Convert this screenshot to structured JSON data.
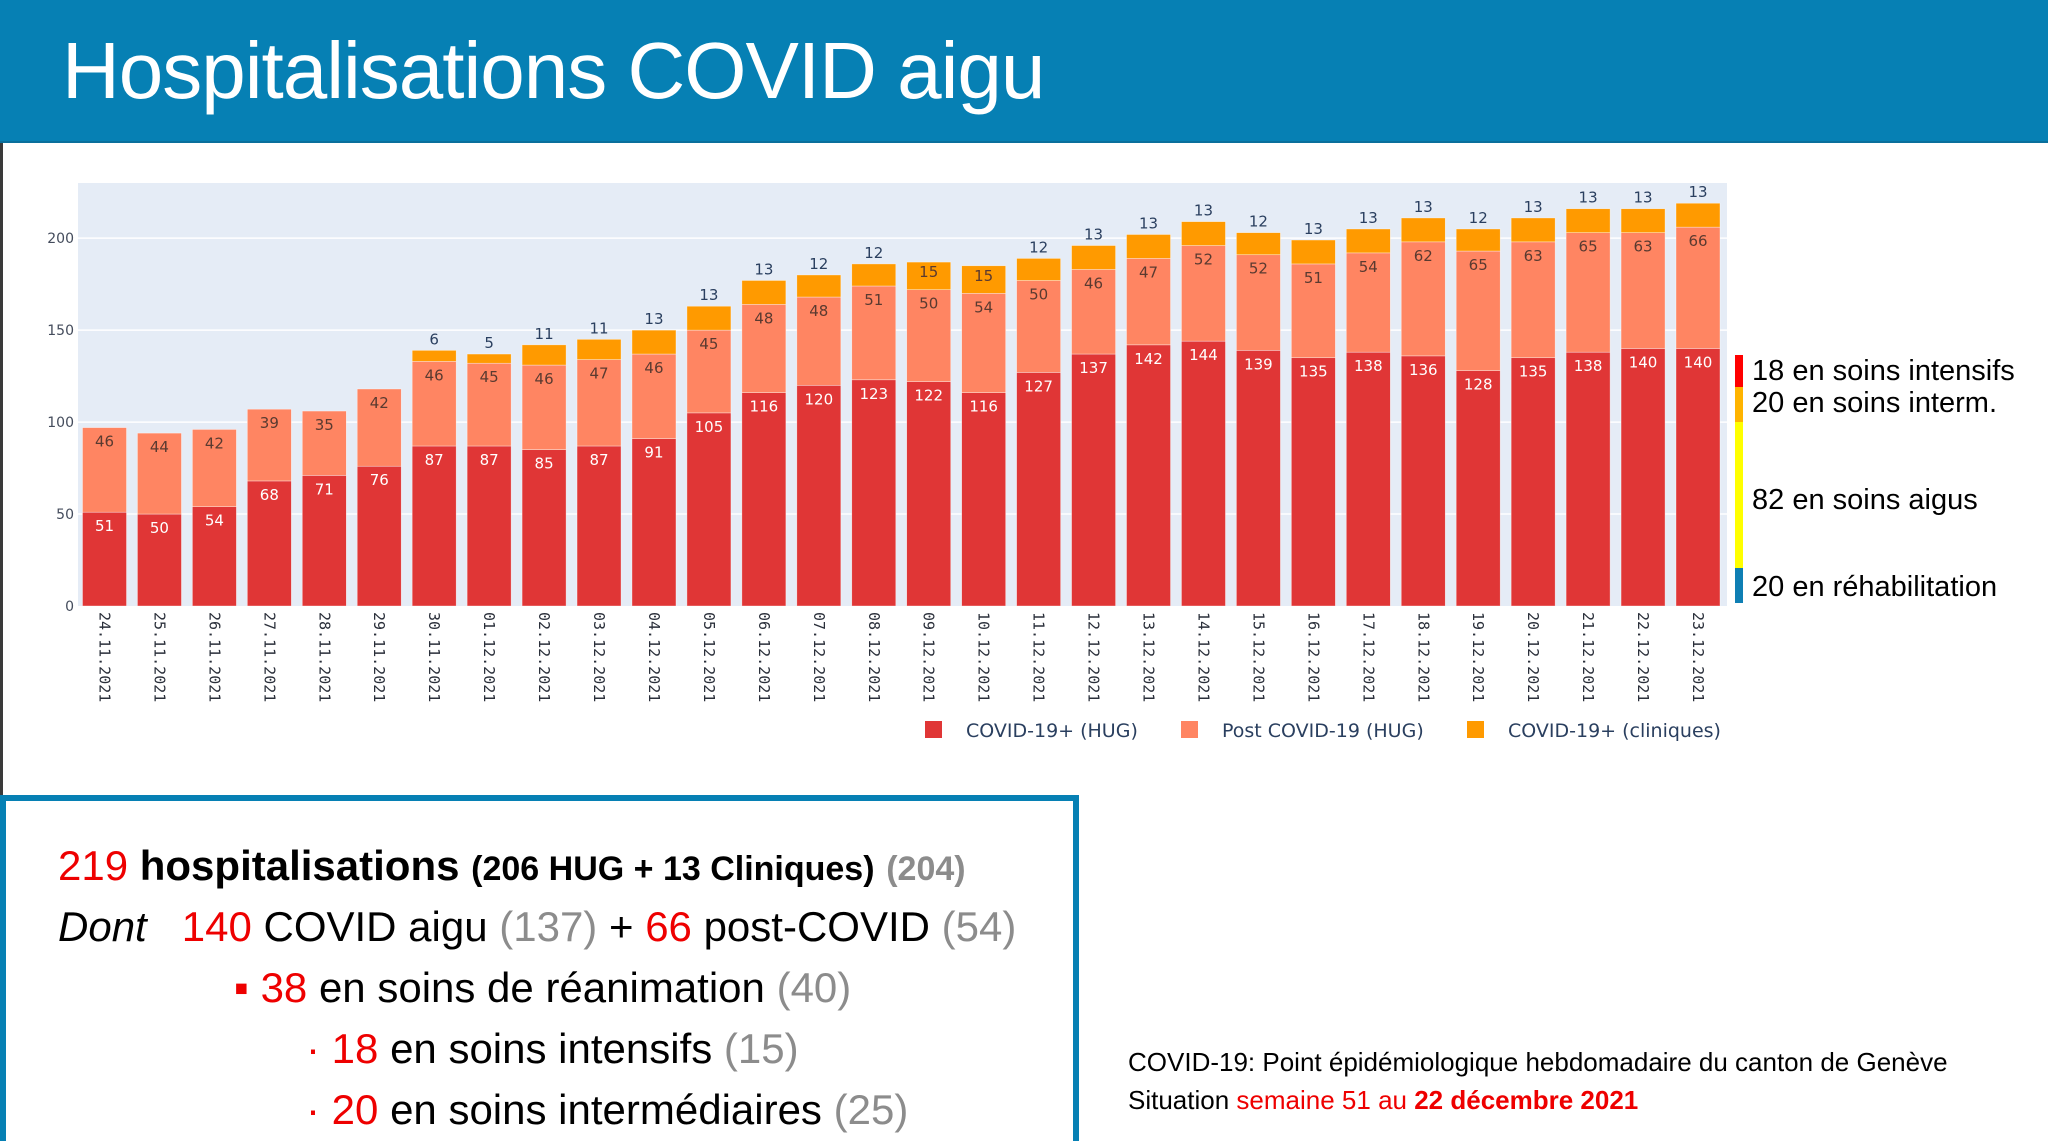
{
  "header": {
    "title": "Hospitalisations COVID aigu"
  },
  "chart_data": {
    "type": "bar",
    "stacked": true,
    "title": "",
    "xlabel": "",
    "ylabel": "",
    "ylim": [
      0,
      230
    ],
    "yticks": [
      0,
      50,
      100,
      150,
      200
    ],
    "grid": true,
    "legend_position": "bottom-right",
    "categories": [
      "24.11.2021",
      "25.11.2021",
      "26.11.2021",
      "27.11.2021",
      "28.11.2021",
      "29.11.2021",
      "30.11.2021",
      "01.12.2021",
      "02.12.2021",
      "03.12.2021",
      "04.12.2021",
      "05.12.2021",
      "06.12.2021",
      "07.12.2021",
      "08.12.2021",
      "09.12.2021",
      "10.12.2021",
      "11.12.2021",
      "12.12.2021",
      "13.12.2021",
      "14.12.2021",
      "15.12.2021",
      "16.12.2021",
      "17.12.2021",
      "18.12.2021",
      "19.12.2021",
      "20.12.2021",
      "21.12.2021",
      "22.12.2021",
      "23.12.2021"
    ],
    "series": [
      {
        "name": "COVID-19+ (HUG)",
        "color": "#e03636",
        "label_color": "#ffffff",
        "values": [
          51,
          50,
          54,
          68,
          71,
          76,
          87,
          87,
          85,
          87,
          91,
          105,
          116,
          120,
          123,
          122,
          116,
          127,
          137,
          142,
          144,
          139,
          135,
          138,
          136,
          128,
          135,
          138,
          140,
          140
        ]
      },
      {
        "name": "Post COVID-19 (HUG)",
        "color": "#ff8562",
        "label_color": "#5a3a30",
        "values": [
          46,
          44,
          42,
          39,
          35,
          42,
          46,
          45,
          46,
          47,
          46,
          45,
          48,
          48,
          51,
          50,
          54,
          50,
          46,
          47,
          52,
          52,
          51,
          54,
          62,
          65,
          63,
          65,
          63,
          66
        ]
      },
      {
        "name": "COVID-19+ (cliniques)",
        "color": "#ff9a00",
        "label_color": "#2a3f5f",
        "values": [
          0,
          0,
          0,
          0,
          0,
          0,
          6,
          5,
          11,
          11,
          13,
          13,
          13,
          12,
          12,
          15,
          15,
          12,
          13,
          13,
          13,
          12,
          13,
          13,
          13,
          12,
          13,
          13,
          13,
          13
        ]
      }
    ],
    "colors": {
      "plot_bg": "#e5ecf6",
      "grid": "#ffffff"
    }
  },
  "side_legend": {
    "items": [
      {
        "label": "18 en soins intensifs",
        "color": "#ff0000",
        "value": 18
      },
      {
        "label": "20 en soins interm.",
        "color": "#ffb400",
        "value": 20
      },
      {
        "label": "82 en soins aigus",
        "color": "#ffff00",
        "value": 82
      },
      {
        "label": "20 en réhabilitation",
        "color": "#0f7fb4",
        "value": 20
      }
    ]
  },
  "summary": {
    "line1": {
      "total": "219",
      "label": "hospitalisations",
      "detail": "(206 HUG + 13 Cliniques)",
      "prev": "(204)"
    },
    "line2": {
      "prefix": "Dont",
      "acute": "140",
      "acute_label": "COVID aigu",
      "acute_prev": "(137)",
      "plus": "+",
      "post": "66",
      "post_label": "post-COVID",
      "post_prev": "(54)"
    },
    "line3": {
      "bullet": "▪",
      "value": "38",
      "label": "en soins de réanimation",
      "prev": "(40)"
    },
    "line4": {
      "bullet": "·",
      "value": "18",
      "label": "en soins intensifs",
      "prev": "(15)"
    },
    "line5": {
      "bullet": "·",
      "value": "20",
      "label": "en soins intermédiaires",
      "prev": "(25)"
    }
  },
  "footer": {
    "line1": "COVID-19: Point épidémiologique hebdomadaire du canton de Genève",
    "line2_prefix": "Situation",
    "line2_red": "semaine 51 au",
    "line2_bold_red": "22 décembre 2021"
  }
}
